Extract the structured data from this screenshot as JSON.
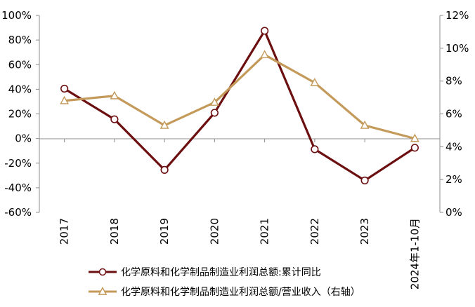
{
  "chart_data": {
    "type": "line",
    "categories": [
      "2017",
      "2018",
      "2019",
      "2020",
      "2021",
      "2022",
      "2023",
      "2024年1-10月"
    ],
    "series": [
      {
        "name": "化学原料和化学制品制造业利润总额:累计同比",
        "axis": "left",
        "color": "#6b0f10",
        "marker": "circle",
        "values": [
          40.5,
          15.6,
          -25.5,
          20.9,
          87.5,
          -8.7,
          -34.1,
          -7.5
        ]
      },
      {
        "name": "化学原料和化学制品制造业利润总额/营业收入（右轴）",
        "axis": "right",
        "color": "#c49a5a",
        "marker": "triangle",
        "values": [
          6.8,
          7.1,
          5.3,
          6.7,
          9.6,
          7.9,
          5.3,
          4.5
        ]
      }
    ],
    "y_left": {
      "min": -60,
      "max": 100,
      "step": 20,
      "tick_labels": [
        "-60%",
        "-40%",
        "-20%",
        "0%",
        "20%",
        "40%",
        "60%",
        "80%",
        "100%"
      ]
    },
    "y_right": {
      "min": 0,
      "max": 12,
      "step": 2,
      "tick_labels": [
        "0%",
        "2%",
        "4%",
        "6%",
        "8%",
        "10%",
        "12%"
      ]
    },
    "legend_position": "bottom",
    "grid": false
  }
}
